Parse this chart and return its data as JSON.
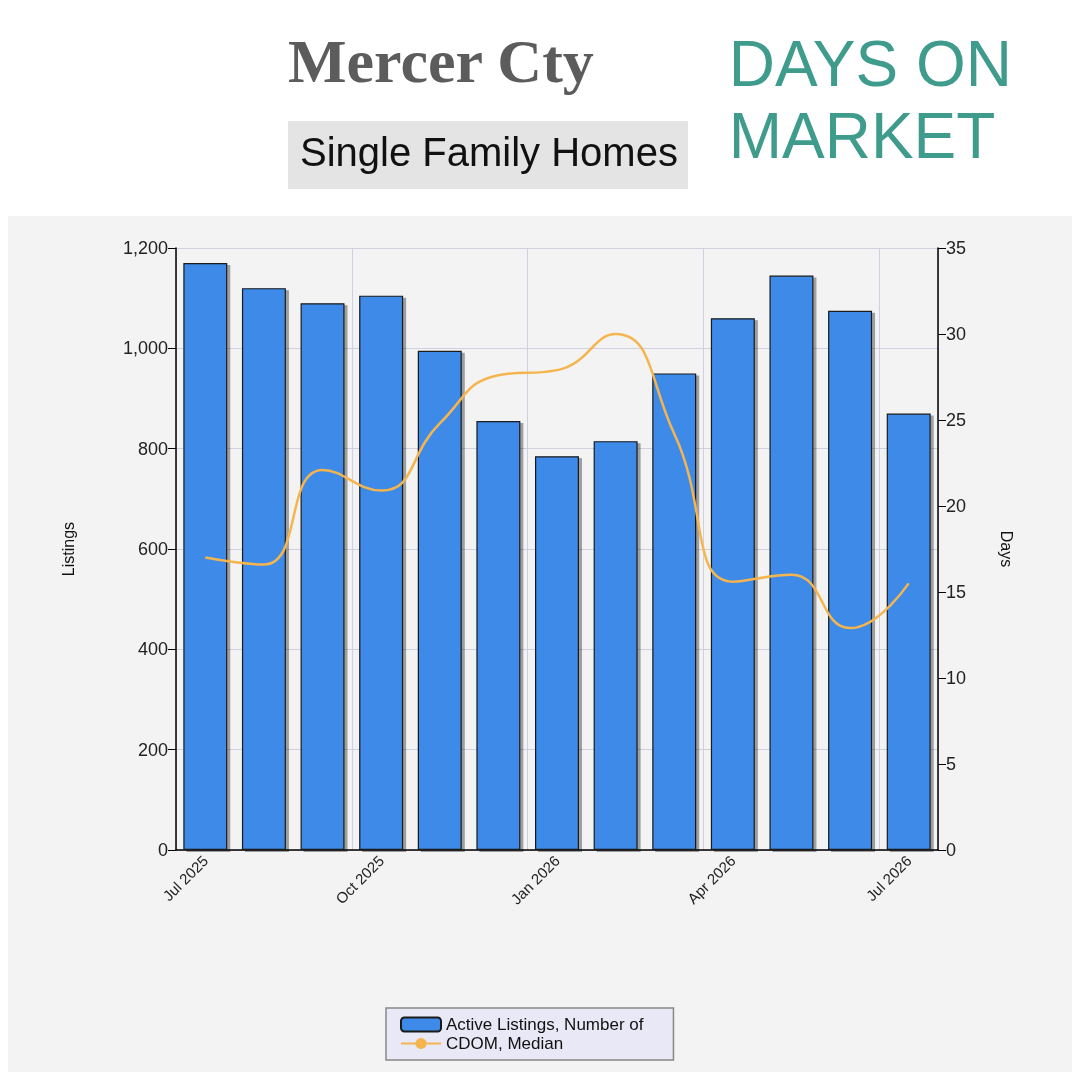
{
  "chart_data": {
    "type": "bar",
    "title": "Mercer Cty",
    "subtitle": "Single Family Homes",
    "annotations": [
      "DAYS ON\nMARKET"
    ],
    "categories": [
      "Jul 2025",
      null,
      null,
      "Oct 2025",
      null,
      null,
      "Jan 2026",
      null,
      null,
      "Apr 2026",
      null,
      null,
      "Jul 2026"
    ],
    "series": [
      {
        "name": "Active Listings, Number of",
        "color": "#3d8ae8",
        "values": [
          1170,
          1120,
          1090,
          1105,
          995,
          855,
          785,
          815,
          950,
          1060,
          1145,
          1075,
          870
        ]
      },
      {
        "name": "CDOM, Median",
        "type": "line",
        "axis": "y2",
        "color": "#f5b54e",
        "values": [
          17.0,
          16.6,
          22.1,
          20.9,
          24.8,
          27.6,
          27.9,
          30.0,
          24.2,
          15.6,
          16.0,
          12.9,
          15.5
        ]
      }
    ],
    "ylabel": "Listings",
    "y2label": "Days",
    "ylim": [
      0,
      1200
    ],
    "yticks": [
      {
        "value": 0,
        "label": "0"
      },
      {
        "value": 200,
        "label": "200"
      },
      {
        "value": 400,
        "label": "400"
      },
      {
        "value": 600,
        "label": "600"
      },
      {
        "value": 800,
        "label": "800"
      },
      {
        "value": 1000,
        "label": "1,000"
      },
      {
        "value": 1200,
        "label": "1,200"
      }
    ],
    "y2lim": [
      0,
      35
    ],
    "y2ticks": [
      0,
      5,
      10,
      15,
      20,
      25,
      30,
      35
    ],
    "grid": true,
    "legend": "bottom",
    "marker": "none",
    "line_style": "solid"
  }
}
